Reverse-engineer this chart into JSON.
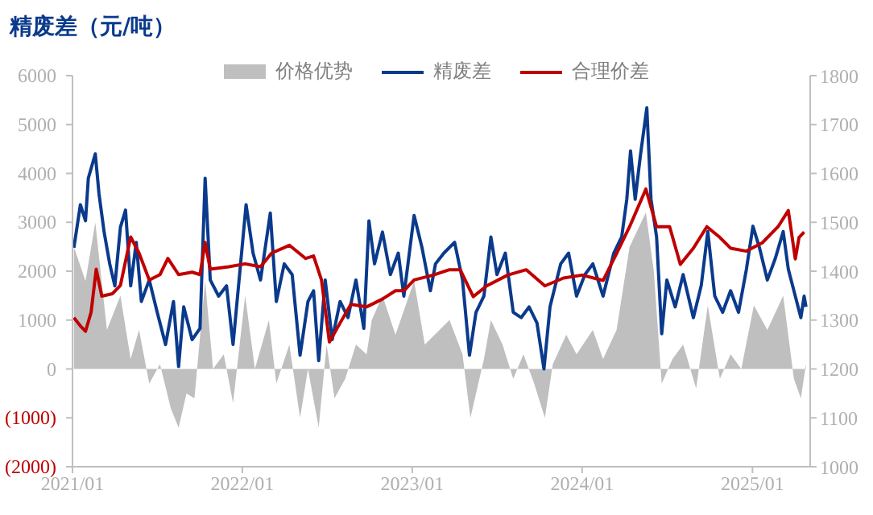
{
  "chart_data": {
    "type": "line",
    "title": "精废差（元/吨）",
    "legend": "top",
    "grid": false,
    "xlim": [
      "2021-01-01",
      "2025-05-05"
    ],
    "xticks": [
      {
        "value": "2021-01-01",
        "label": "2021/01"
      },
      {
        "value": "2022-01-01",
        "label": "2022/01"
      },
      {
        "value": "2023-01-01",
        "label": "2023/01"
      },
      {
        "value": "2024-01-01",
        "label": "2024/01"
      },
      {
        "value": "2025-01-01",
        "label": "2025/01"
      }
    ],
    "ylim": [
      -2000,
      6000
    ],
    "yticks": [
      {
        "value": -2000,
        "label": "(2000)"
      },
      {
        "value": -1000,
        "label": "(1000)"
      },
      0,
      1000,
      2000,
      3000,
      4000,
      5000,
      6000
    ],
    "y2lim": [
      1000,
      1800
    ],
    "y2ticks": [
      1000,
      1100,
      1200,
      1300,
      1400,
      1500,
      1600,
      1700,
      1800
    ],
    "series": [
      {
        "name": "价格优势",
        "type": "area",
        "color": "#bfbfbf",
        "x": [
          "2021-01-04",
          "2021-01-29",
          "2021-02-19",
          "2021-03-16",
          "2021-04-14",
          "2021-05-06",
          "2021-05-24",
          "2021-06-15",
          "2021-07-08",
          "2021-07-31",
          "2021-08-17",
          "2021-09-03",
          "2021-09-20",
          "2021-10-13",
          "2021-10-30",
          "2021-11-22",
          "2021-12-12",
          "2022-01-07",
          "2022-01-28",
          "2022-02-27",
          "2022-03-15",
          "2022-04-12",
          "2022-05-05",
          "2022-05-22",
          "2022-06-14",
          "2022-07-01",
          "2022-07-18",
          "2022-08-10",
          "2022-09-02",
          "2022-09-25",
          "2022-10-06",
          "2022-10-29",
          "2022-11-26",
          "2023-01-05",
          "2023-01-28",
          "2023-03-22",
          "2023-04-19",
          "2023-05-06",
          "2023-06-04",
          "2023-06-19",
          "2023-07-14",
          "2023-08-06",
          "2023-08-28",
          "2023-09-20",
          "2023-10-13",
          "2023-10-30",
          "2023-11-28",
          "2023-12-20",
          "2024-01-24",
          "2024-02-15",
          "2024-03-15",
          "2024-04-12",
          "2024-05-17",
          "2024-06-03",
          "2024-06-20",
          "2024-07-13",
          "2024-08-05",
          "2024-09-02",
          "2024-09-27",
          "2024-10-23",
          "2024-11-15",
          "2024-12-08",
          "2025-01-04",
          "2025-02-02",
          "2025-03-08",
          "2025-03-31",
          "2025-04-15",
          "2025-04-26"
        ],
        "values": [
          2500,
          1800,
          3000,
          800,
          1500,
          200,
          800,
          -300,
          100,
          -800,
          -1200,
          -500,
          -600,
          1800,
          0,
          300,
          -700,
          1500,
          0,
          1000,
          -300,
          500,
          -1000,
          0,
          -1200,
          500,
          -600,
          -200,
          500,
          300,
          1000,
          1500,
          700,
          1800,
          500,
          1000,
          300,
          -1000,
          200,
          1000,
          500,
          -200,
          300,
          -300,
          -1000,
          100,
          700,
          300,
          800,
          200,
          800,
          2500,
          3200,
          2000,
          -300,
          200,
          500,
          -400,
          1300,
          -200,
          300,
          0,
          1300,
          800,
          1500,
          -200,
          -600,
          100
        ]
      },
      {
        "name": "精废差",
        "type": "line",
        "color": "#0a3a8c",
        "x": [
          "2021-01-04",
          "2021-01-18",
          "2021-01-29",
          "2021-02-04",
          "2021-02-19",
          "2021-02-27",
          "2021-03-10",
          "2021-03-22",
          "2021-04-02",
          "2021-04-14",
          "2021-04-25",
          "2021-05-06",
          "2021-05-18",
          "2021-05-29",
          "2021-06-15",
          "2021-07-02",
          "2021-07-20",
          "2021-08-06",
          "2021-08-17",
          "2021-08-28",
          "2021-09-15",
          "2021-10-02",
          "2021-10-13",
          "2021-10-24",
          "2021-11-11",
          "2021-11-28",
          "2021-12-12",
          "2021-12-26",
          "2022-01-09",
          "2022-01-24",
          "2022-02-09",
          "2022-03-02",
          "2022-03-15",
          "2022-04-01",
          "2022-04-18",
          "2022-05-05",
          "2022-05-22",
          "2022-06-03",
          "2022-06-14",
          "2022-06-28",
          "2022-07-13",
          "2022-07-30",
          "2022-08-16",
          "2022-09-02",
          "2022-09-19",
          "2022-09-30",
          "2022-10-12",
          "2022-10-29",
          "2022-11-15",
          "2022-12-02",
          "2022-12-14",
          "2023-01-05",
          "2023-01-22",
          "2023-02-09",
          "2023-02-20",
          "2023-03-10",
          "2023-04-02",
          "2023-04-19",
          "2023-05-04",
          "2023-05-18",
          "2023-06-04",
          "2023-06-19",
          "2023-07-02",
          "2023-07-20",
          "2023-08-06",
          "2023-08-23",
          "2023-09-09",
          "2023-09-26",
          "2023-10-11",
          "2023-10-24",
          "2023-11-16",
          "2023-12-03",
          "2023-12-20",
          "2024-01-07",
          "2024-01-24",
          "2024-02-15",
          "2024-03-09",
          "2024-03-26",
          "2024-04-06",
          "2024-04-14",
          "2024-04-24",
          "2024-05-05",
          "2024-05-19",
          "2024-05-28",
          "2024-06-09",
          "2024-06-20",
          "2024-07-01",
          "2024-07-19",
          "2024-08-05",
          "2024-08-27",
          "2024-09-13",
          "2024-09-27",
          "2024-10-12",
          "2024-10-29",
          "2024-11-15",
          "2024-12-02",
          "2024-12-19",
          "2025-01-02",
          "2025-01-16",
          "2025-02-02",
          "2025-02-19",
          "2025-03-08",
          "2025-03-19",
          "2025-03-31",
          "2025-04-15",
          "2025-04-22",
          "2025-04-26"
        ],
        "values": [
          2480,
          3360,
          3030,
          3900,
          4400,
          3580,
          2800,
          2150,
          1700,
          2900,
          3250,
          1700,
          2590,
          1380,
          1820,
          1160,
          500,
          1380,
          50,
          1270,
          600,
          830,
          3900,
          1820,
          1490,
          1700,
          500,
          1930,
          3360,
          2370,
          1820,
          3190,
          1380,
          2150,
          1930,
          280,
          1380,
          1600,
          170,
          1820,
          600,
          1380,
          1050,
          1820,
          830,
          3030,
          2150,
          2800,
          1930,
          2370,
          1490,
          3140,
          2480,
          1600,
          2150,
          2370,
          2590,
          1820,
          280,
          1160,
          1490,
          2700,
          1930,
          2370,
          1160,
          1050,
          1270,
          940,
          0,
          1270,
          2150,
          2370,
          1490,
          1930,
          2150,
          1490,
          2370,
          2700,
          3470,
          4460,
          3470,
          4350,
          5340,
          3470,
          2700,
          720,
          1820,
          1270,
          1930,
          1050,
          1710,
          2810,
          1490,
          1160,
          1600,
          1160,
          2040,
          2920,
          2480,
          1820,
          2260,
          2810,
          2040,
          1600,
          1050,
          1490,
          1270
        ]
      },
      {
        "name": "合理价差",
        "type": "line",
        "axis": "y2",
        "color": "#c00000",
        "x": [
          "2021-01-04",
          "2021-01-18",
          "2021-01-29",
          "2021-02-10",
          "2021-02-21",
          "2021-03-05",
          "2021-03-28",
          "2021-04-14",
          "2021-05-06",
          "2021-05-24",
          "2021-06-15",
          "2021-07-08",
          "2021-07-25",
          "2021-08-17",
          "2021-09-15",
          "2021-10-02",
          "2021-10-13",
          "2021-10-24",
          "2021-12-03",
          "2022-01-07",
          "2022-02-09",
          "2022-03-05",
          "2022-04-12",
          "2022-05-17",
          "2022-06-03",
          "2022-06-20",
          "2022-07-07",
          "2022-07-30",
          "2022-08-22",
          "2022-09-25",
          "2022-10-29",
          "2022-11-26",
          "2022-12-14",
          "2023-01-05",
          "2023-02-15",
          "2023-03-22",
          "2023-04-14",
          "2023-05-12",
          "2023-06-10",
          "2023-07-25",
          "2023-09-03",
          "2023-10-13",
          "2023-11-22",
          "2024-01-01",
          "2024-02-15",
          "2024-03-15",
          "2024-04-12",
          "2024-05-17",
          "2024-06-09",
          "2024-07-07",
          "2024-07-30",
          "2024-08-27",
          "2024-09-25",
          "2024-10-23",
          "2024-11-15",
          "2024-12-19",
          "2025-01-22",
          "2025-02-25",
          "2025-03-19",
          "2025-04-03",
          "2025-04-11",
          "2025-04-22"
        ],
        "values": [
          1305,
          1288,
          1277,
          1316,
          1404,
          1349,
          1354,
          1371,
          1470,
          1437,
          1382,
          1393,
          1426,
          1393,
          1398,
          1393,
          1459,
          1404,
          1409,
          1415,
          1409,
          1437,
          1453,
          1426,
          1431,
          1382,
          1255,
          1294,
          1332,
          1327,
          1343,
          1360,
          1360,
          1382,
          1392,
          1403,
          1403,
          1348,
          1370,
          1392,
          1403,
          1370,
          1386,
          1392,
          1381,
          1436,
          1491,
          1568,
          1491,
          1491,
          1414,
          1447,
          1491,
          1469,
          1447,
          1441,
          1458,
          1491,
          1524,
          1425,
          1469,
          1480
        ]
      }
    ]
  }
}
